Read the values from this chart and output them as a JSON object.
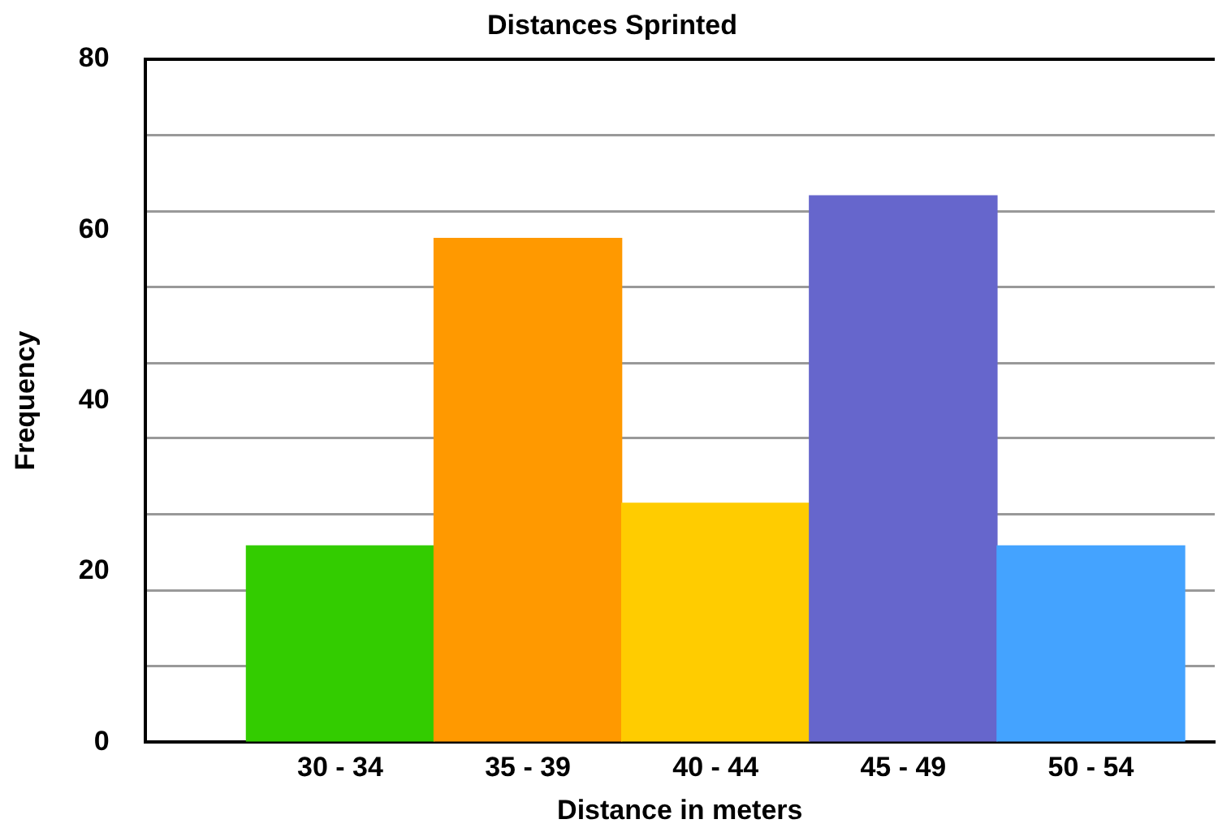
{
  "chart_data": {
    "type": "bar",
    "title": "Distances Sprinted",
    "xlabel": "Distance in meters",
    "ylabel": "Frequency",
    "categories": [
      "30 - 34",
      "35 - 39",
      "40 - 44",
      "45 - 49",
      "50 - 54"
    ],
    "values": [
      23,
      59,
      28,
      64,
      23
    ],
    "colors": [
      "#33cc00",
      "#ff9900",
      "#ffcc00",
      "#6666cc",
      "#44a3ff"
    ],
    "ylim": [
      0,
      80
    ],
    "yticks": [
      0,
      {
        "value": 8.9,
        "label": null
      },
      {
        "value": 17.8,
        "label": null
      },
      20,
      {
        "value": 26.7,
        "label": null
      },
      {
        "value": 35.6,
        "label": null
      },
      40,
      {
        "value": 44.4,
        "label": null
      },
      {
        "value": 53.3,
        "label": null
      },
      60,
      {
        "value": 62.2,
        "label": null
      },
      {
        "value": 71.1,
        "label": null
      },
      80
    ],
    "grid": "y"
  }
}
